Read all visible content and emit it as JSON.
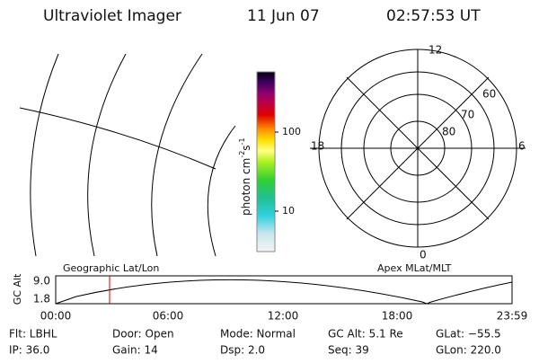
{
  "header": {
    "title": "Ultraviolet Imager",
    "date": "11 Jun 07",
    "time": "02:57:53 UT"
  },
  "colorbar": {
    "unit": [
      "photon cm",
      "-2",
      "s",
      "-1"
    ],
    "ticks": [
      "100",
      "10"
    ]
  },
  "polar": {
    "hours": [
      "12",
      "18",
      "6",
      "0"
    ],
    "latitudes": [
      "60",
      "70",
      "80"
    ]
  },
  "timeline": {
    "axis_label": "GC Alt",
    "y_labels": [
      "9.0",
      "1.8"
    ],
    "left_label": "Geographic Lat/Lon",
    "right_label": "Apex MLat/MLT",
    "time_labels": [
      "00:00",
      "06:00",
      "12:00",
      "18:00",
      "23:59"
    ]
  },
  "info": {
    "rows": [
      [
        "Flt: LBHL",
        "Door: Open",
        "Mode: Normal",
        "GC Alt: 5.1 Re",
        "GLat: −55.5"
      ],
      [
        "IP: 36.0",
        "Gain: 14",
        "Dsp:    2.0",
        "Seq: 39",
        "GLon: 220.0"
      ]
    ]
  }
}
